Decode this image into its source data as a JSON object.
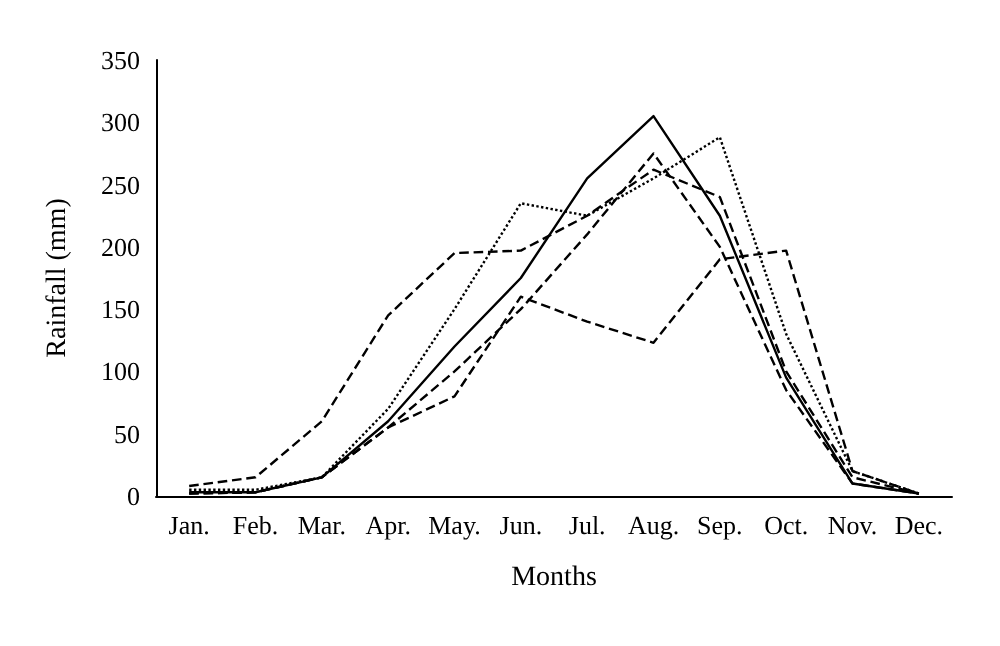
{
  "chart_data": {
    "type": "line",
    "xlabel": "Months",
    "ylabel": "Rainfall (mm)",
    "categories": [
      "Jan.",
      "Feb.",
      "Mar.",
      "Apr.",
      "May.",
      "Jun.",
      "Jul.",
      "Aug.",
      "Sep.",
      "Oct.",
      "Nov.",
      "Dec."
    ],
    "series": [
      {
        "color": "#000000",
        "line_style": "solid",
        "values": [
          3,
          3,
          15,
          60,
          120,
          175,
          255,
          305,
          225,
          95,
          10,
          2
        ]
      },
      {
        "color": "#000000",
        "line_style": "dotted",
        "values": [
          5,
          5,
          15,
          70,
          150,
          235,
          225,
          255,
          288,
          130,
          20,
          2
        ]
      },
      {
        "color": "#000000",
        "line_style": "dashed",
        "values": [
          8,
          15,
          60,
          145,
          195,
          197,
          225,
          262,
          240,
          100,
          15,
          2
        ]
      },
      {
        "color": "#000000",
        "line_style": "dashed",
        "values": [
          2,
          3,
          15,
          55,
          80,
          160,
          140,
          123,
          190,
          197,
          20,
          2
        ]
      },
      {
        "color": "#000000",
        "line_style": "dashed",
        "values": [
          2,
          3,
          15,
          55,
          100,
          150,
          210,
          275,
          200,
          85,
          10,
          2
        ]
      }
    ],
    "ylim": [
      0,
      350
    ],
    "yticks": [
      0,
      50,
      100,
      150,
      200,
      250,
      300,
      350
    ],
    "grid": false,
    "marker": "none"
  }
}
